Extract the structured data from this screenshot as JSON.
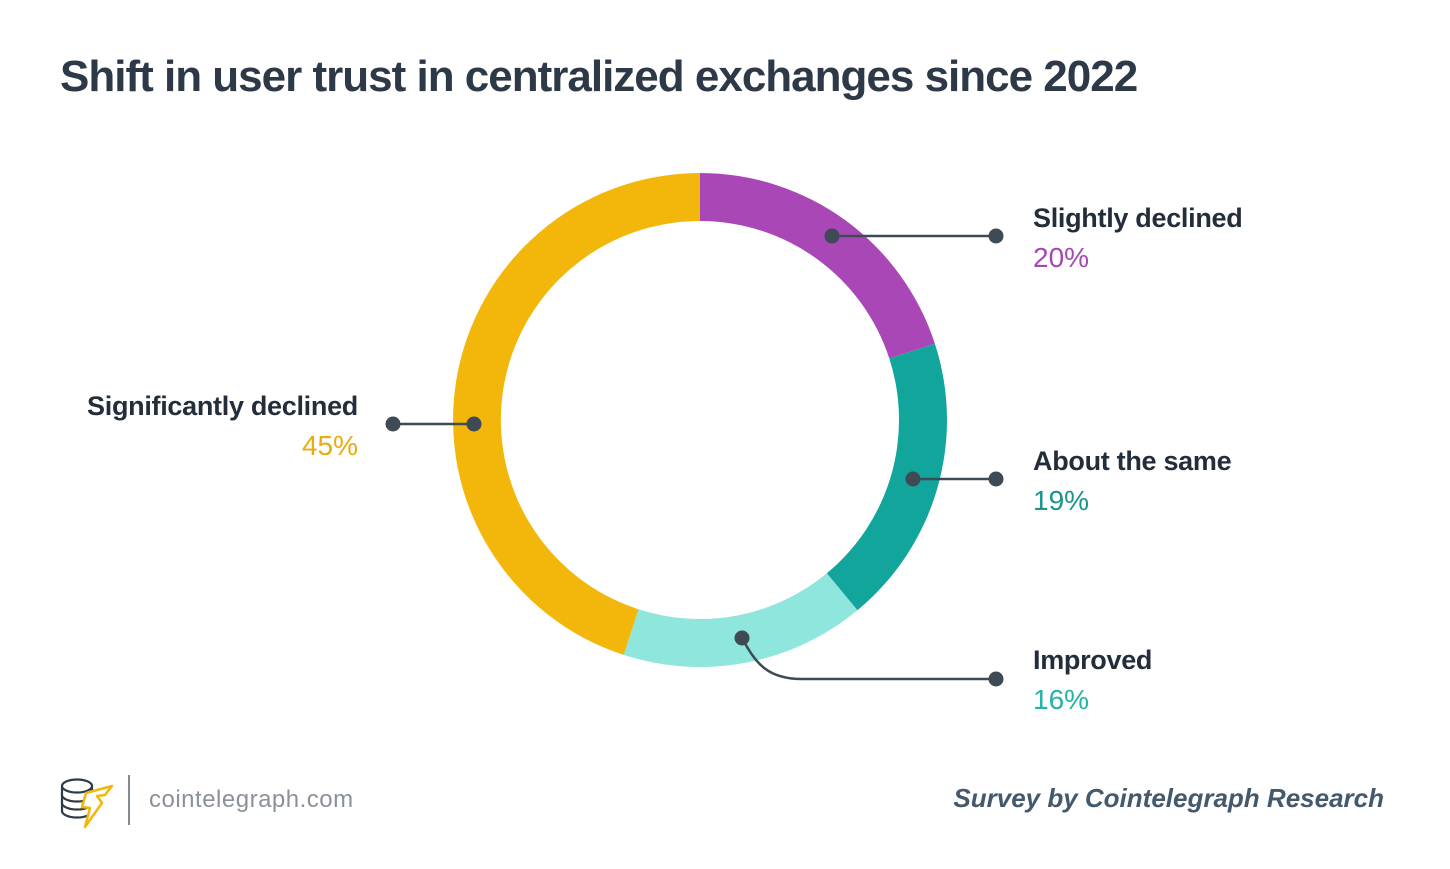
{
  "page": {
    "title": "Shift in user trust in centralized exchanges since 2022"
  },
  "chart_data": {
    "type": "pie",
    "variant": "donut",
    "title": "Shift in user trust in centralized exchanges since 2022",
    "unit": "%",
    "direction": "clockwise",
    "start_angle_deg": 0,
    "inner_radius_ratio": 0.805,
    "segments": [
      {
        "label": "Slightly declined",
        "value": 20,
        "pct_label": "20%",
        "color": "#A847B5",
        "pct_color": "#A648B4"
      },
      {
        "label": "About the same",
        "value": 19,
        "pct_label": "19%",
        "color": "#11A59B",
        "pct_color": "#1B948C"
      },
      {
        "label": "Improved",
        "value": 16,
        "pct_label": "16%",
        "color": "#8FE6DD",
        "pct_color": "#24B3AA"
      },
      {
        "label": "Significantly declined",
        "value": 45,
        "pct_label": "45%",
        "color": "#F3B70B",
        "pct_color": "#E8AB10"
      }
    ]
  },
  "footer": {
    "site": "cointelegraph.com",
    "credit": "Survey by Cointelegraph Research",
    "logo": "cointelegraph-coin-lightning-logo"
  },
  "colors": {
    "background": "#FFFFFF",
    "title_text": "#2D3947",
    "label_text": "#232E3A",
    "leader_line": "#3E4A54",
    "footer_site_text": "#8A9199",
    "footer_credit_text": "#44596C",
    "logo_coin_stroke": "#2E3A45",
    "logo_bolt_stroke": "#F2B70A"
  }
}
